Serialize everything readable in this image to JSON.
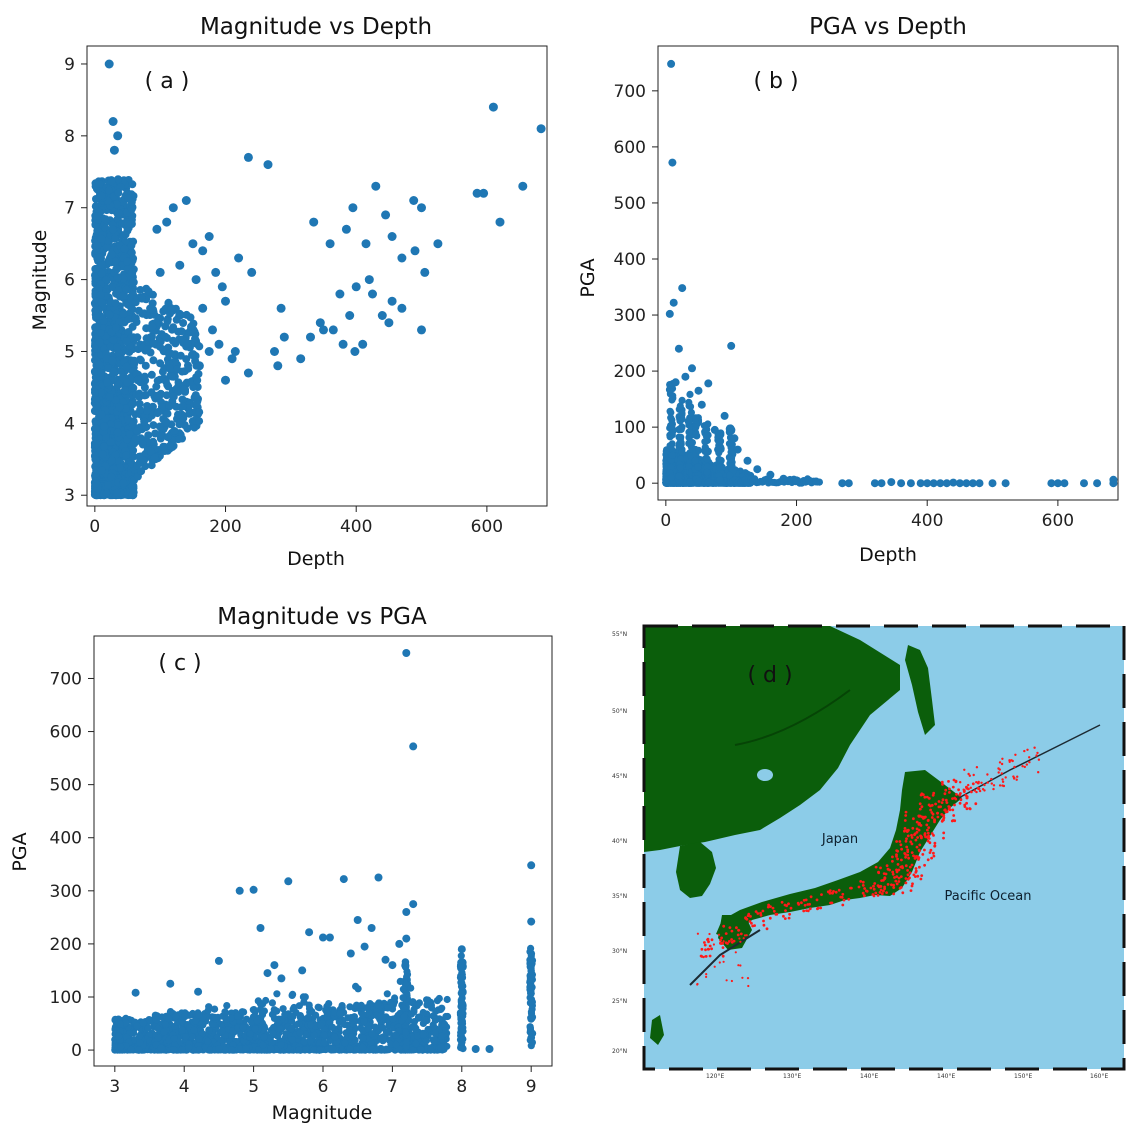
{
  "colors": {
    "marker": "#1f77b4",
    "land": "#0b5e0b",
    "ocean": "#8ccce8",
    "quake": "#ff1a1a"
  },
  "chart_data": [
    {
      "type": "scatter",
      "panel": "a",
      "panel_label": "( a )",
      "title": "Magnitude vs Depth",
      "xlabel": "Depth",
      "ylabel": "Magnitude",
      "xlim": [
        -12,
        692
      ],
      "ylim": [
        2.85,
        9.25
      ],
      "xticks": [
        0,
        200,
        400,
        600
      ],
      "yticks": [
        3,
        4,
        5,
        6,
        7,
        8,
        9
      ],
      "grid": false,
      "points": [
        [
          22,
          9.0
        ],
        [
          28,
          8.2
        ],
        [
          35,
          8.0
        ],
        [
          30,
          7.8
        ],
        [
          235,
          7.7
        ],
        [
          265,
          7.6
        ],
        [
          610,
          8.4
        ],
        [
          683,
          8.1
        ],
        [
          585,
          7.2
        ],
        [
          595,
          7.2
        ],
        [
          655,
          7.3
        ],
        [
          620,
          6.8
        ],
        [
          430,
          7.3
        ],
        [
          488,
          7.1
        ],
        [
          500,
          7.0
        ],
        [
          395,
          7.0
        ],
        [
          445,
          6.9
        ],
        [
          335,
          6.8
        ],
        [
          385,
          6.7
        ],
        [
          525,
          6.5
        ],
        [
          470,
          6.3
        ],
        [
          490,
          6.4
        ],
        [
          455,
          6.6
        ],
        [
          360,
          6.5
        ],
        [
          415,
          6.5
        ],
        [
          505,
          6.1
        ],
        [
          420,
          6.0
        ],
        [
          400,
          5.9
        ],
        [
          375,
          5.8
        ],
        [
          470,
          5.6
        ],
        [
          440,
          5.5
        ],
        [
          450,
          5.4
        ],
        [
          390,
          5.5
        ],
        [
          365,
          5.3
        ],
        [
          345,
          5.4
        ],
        [
          330,
          5.2
        ],
        [
          410,
          5.1
        ],
        [
          380,
          5.1
        ],
        [
          398,
          5.0
        ],
        [
          500,
          5.3
        ],
        [
          315,
          4.9
        ],
        [
          290,
          5.2
        ],
        [
          275,
          5.0
        ],
        [
          280,
          4.8
        ],
        [
          200,
          4.6
        ],
        [
          215,
          5.0
        ],
        [
          235,
          4.7
        ],
        [
          220,
          6.3
        ],
        [
          195,
          5.9
        ],
        [
          175,
          6.6
        ],
        [
          165,
          6.4
        ],
        [
          185,
          6.1
        ],
        [
          150,
          6.5
        ],
        [
          140,
          7.1
        ],
        [
          120,
          7.0
        ],
        [
          110,
          6.8
        ],
        [
          155,
          6.0
        ],
        [
          165,
          5.6
        ],
        [
          200,
          5.7
        ],
        [
          190,
          5.1
        ],
        [
          180,
          5.3
        ],
        [
          210,
          4.9
        ],
        [
          175,
          5.0
        ],
        [
          160,
          4.8
        ],
        [
          130,
          6.2
        ],
        [
          100,
          6.1
        ],
        [
          95,
          6.7
        ],
        [
          240,
          6.1
        ],
        [
          285,
          5.6
        ],
        [
          350,
          5.3
        ],
        [
          425,
          5.8
        ],
        [
          455,
          5.7
        ]
      ],
      "dense_region": {
        "depth_range": [
          0,
          60
        ],
        "magnitude_range": [
          3.0,
          7.4
        ]
      },
      "secondary_region": {
        "depth_range": [
          60,
          160
        ],
        "magnitude_range": [
          3.2,
          6.0
        ]
      }
    },
    {
      "type": "scatter",
      "panel": "b",
      "panel_label": "( b )",
      "title": "PGA vs Depth",
      "xlabel": "Depth",
      "ylabel": "PGA",
      "xlim": [
        -12,
        692
      ],
      "ylim": [
        -30,
        780
      ],
      "xticks": [
        0,
        200,
        400,
        600
      ],
      "yticks": [
        0,
        100,
        200,
        300,
        400,
        500,
        600,
        700
      ],
      "grid": false,
      "points": [
        [
          8,
          748
        ],
        [
          10,
          572
        ],
        [
          25,
          348
        ],
        [
          12,
          322
        ],
        [
          6,
          302
        ],
        [
          100,
          245
        ],
        [
          40,
          205
        ],
        [
          20,
          240
        ],
        [
          65,
          178
        ],
        [
          30,
          190
        ],
        [
          50,
          165
        ],
        [
          15,
          180
        ],
        [
          55,
          140
        ],
        [
          90,
          120
        ],
        [
          35,
          110
        ],
        [
          75,
          95
        ],
        [
          80,
          60
        ],
        [
          105,
          80
        ],
        [
          110,
          60
        ],
        [
          125,
          40
        ],
        [
          140,
          25
        ],
        [
          160,
          15
        ],
        [
          180,
          8
        ],
        [
          200,
          5
        ],
        [
          220,
          4
        ],
        [
          230,
          3
        ]
      ],
      "dense_region": {
        "depth_range": [
          0,
          130
        ],
        "pga_range": [
          0,
          60
        ]
      },
      "baseline_points": [
        [
          270,
          0
        ],
        [
          280,
          0
        ],
        [
          320,
          0
        ],
        [
          330,
          0
        ],
        [
          345,
          2
        ],
        [
          360,
          0
        ],
        [
          375,
          0
        ],
        [
          390,
          0
        ],
        [
          400,
          0
        ],
        [
          410,
          0
        ],
        [
          420,
          0
        ],
        [
          430,
          0
        ],
        [
          440,
          1
        ],
        [
          450,
          0
        ],
        [
          460,
          0
        ],
        [
          470,
          0
        ],
        [
          480,
          0
        ],
        [
          500,
          0
        ],
        [
          520,
          0
        ],
        [
          590,
          0
        ],
        [
          600,
          0
        ],
        [
          610,
          0
        ],
        [
          640,
          0
        ],
        [
          660,
          0
        ],
        [
          685,
          0
        ],
        [
          685,
          6
        ]
      ]
    },
    {
      "type": "scatter",
      "panel": "c",
      "panel_label": "( c )",
      "title": "Magnitude vs PGA",
      "xlabel": "Magnitude",
      "ylabel": "PGA",
      "xlim": [
        2.7,
        9.3
      ],
      "ylim": [
        -30,
        780
      ],
      "xticks": [
        3,
        4,
        5,
        6,
        7,
        8,
        9
      ],
      "yticks": [
        0,
        100,
        200,
        300,
        400,
        500,
        600,
        700
      ],
      "grid": false,
      "points": [
        [
          7.2,
          748
        ],
        [
          7.3,
          572
        ],
        [
          9.0,
          348
        ],
        [
          6.8,
          325
        ],
        [
          6.3,
          322
        ],
        [
          5.5,
          318
        ],
        [
          4.8,
          300
        ],
        [
          5.0,
          302
        ],
        [
          7.3,
          275
        ],
        [
          7.2,
          260
        ],
        [
          6.5,
          245
        ],
        [
          9.0,
          242
        ],
        [
          6.7,
          230
        ],
        [
          5.1,
          230
        ],
        [
          5.8,
          222
        ],
        [
          6.0,
          212
        ],
        [
          6.1,
          212
        ],
        [
          7.2,
          210
        ],
        [
          7.1,
          200
        ],
        [
          8.0,
          190
        ],
        [
          4.5,
          168
        ],
        [
          4.2,
          110
        ],
        [
          3.8,
          125
        ],
        [
          5.3,
          160
        ],
        [
          5.2,
          145
        ],
        [
          5.7,
          150
        ],
        [
          6.6,
          195
        ],
        [
          6.4,
          182
        ],
        [
          3.3,
          108
        ],
        [
          5.4,
          135
        ],
        [
          6.9,
          170
        ],
        [
          7.0,
          160
        ]
      ],
      "dense_band": {
        "magnitude_range": [
          3.0,
          7.8
        ],
        "pga_range": [
          0,
          60
        ]
      },
      "columns": [
        {
          "magnitude": 8.0,
          "pga_range": [
            0,
            185
          ]
        },
        {
          "magnitude": 9.0,
          "pga_range": [
            0,
            195
          ]
        },
        {
          "magnitude": 7.2,
          "pga_range": [
            0,
            170
          ]
        }
      ]
    }
  ],
  "map": {
    "panel_label": "( d )",
    "labels": {
      "japan": "Japan",
      "pacific": "Pacific Ocean"
    },
    "lat_labels": [
      "55°N",
      "50°N",
      "45°N",
      "40°N",
      "35°N",
      "30°N",
      "25°N",
      "20°N"
    ],
    "lon_labels": [
      "120°E",
      "130°E",
      "140°E",
      "140°E",
      "150°E",
      "160°E"
    ]
  }
}
